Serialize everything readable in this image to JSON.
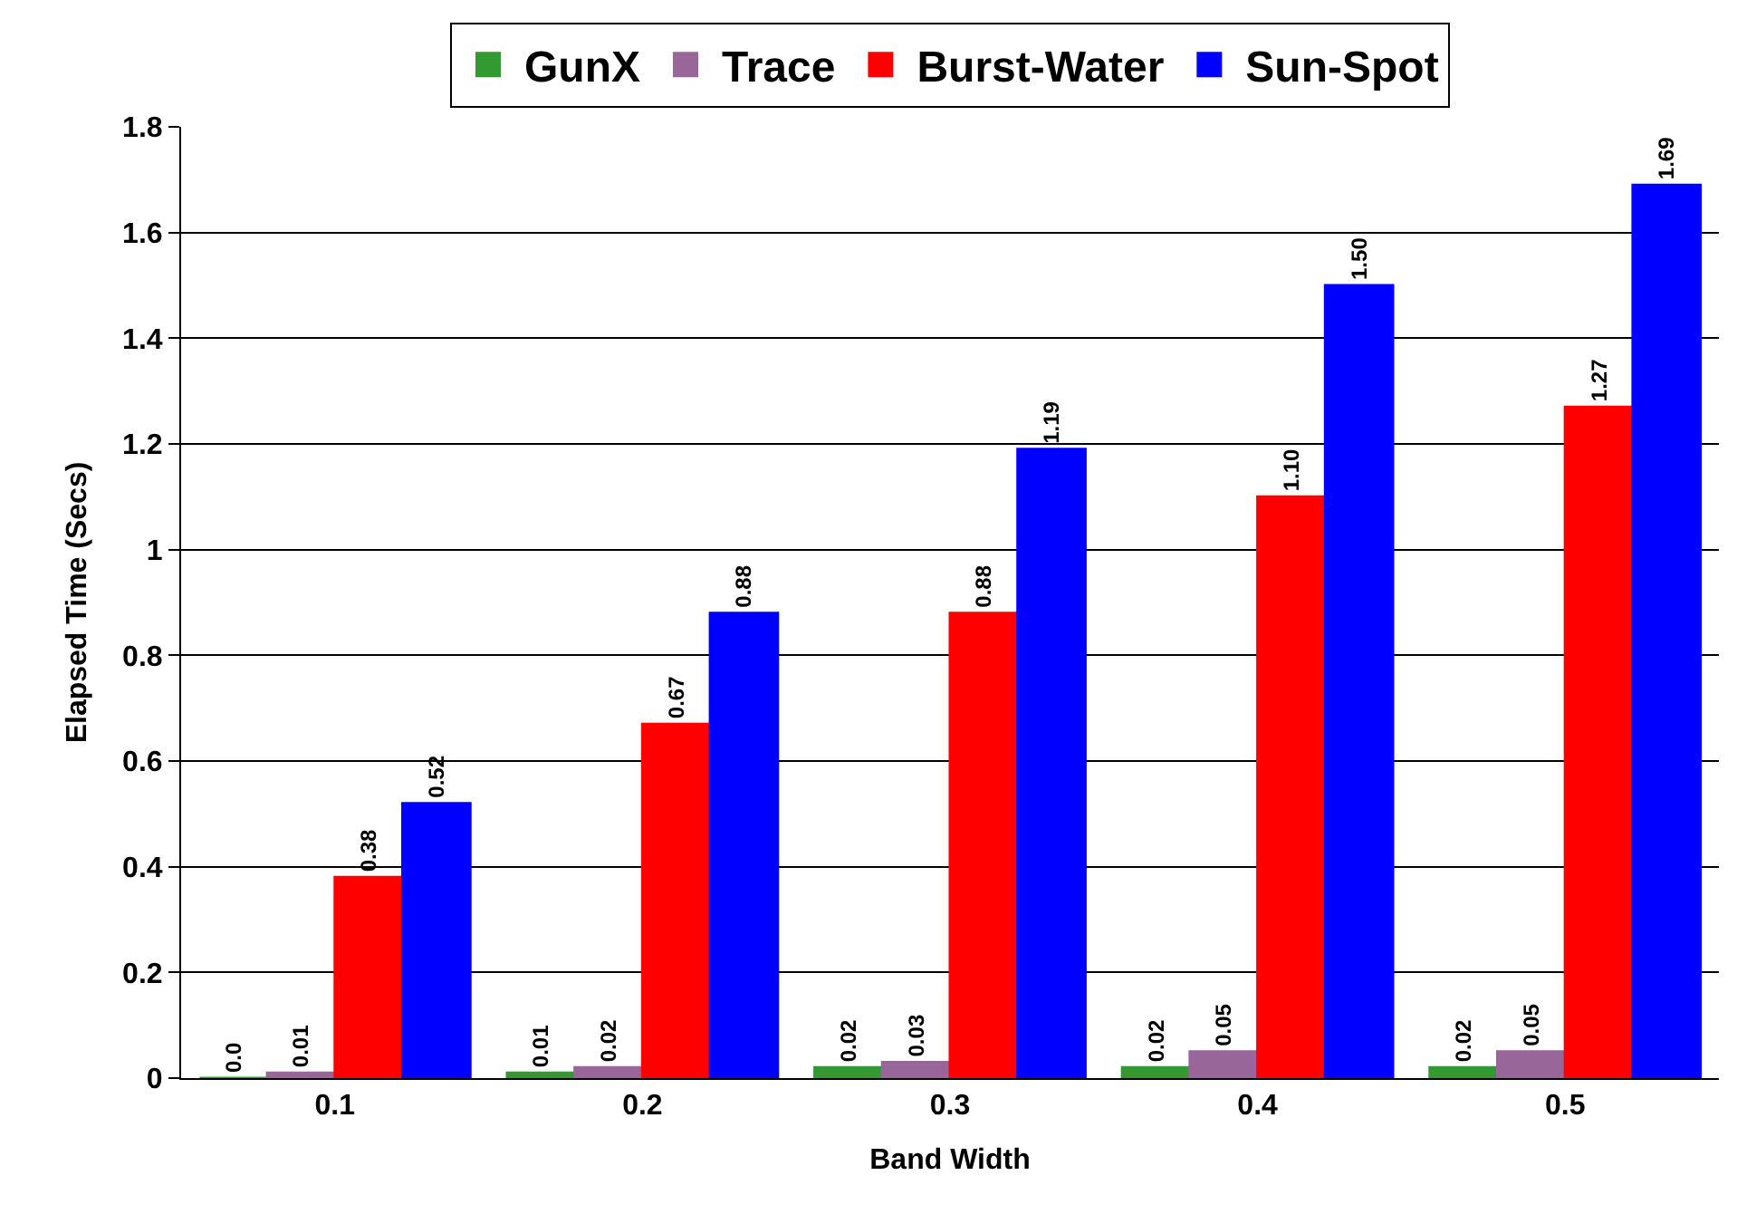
{
  "chart_data": {
    "type": "bar",
    "xlabel": "Band Width",
    "ylabel": "Elapsed Time (Secs)",
    "categories": [
      "0.1",
      "0.2",
      "0.3",
      "0.4",
      "0.5"
    ],
    "series": [
      {
        "name": "GunX",
        "color": "#339933",
        "values": [
          0.0,
          0.01,
          0.02,
          0.02,
          0.02
        ],
        "value_labels": [
          "0.0",
          "0.01",
          "0.02",
          "0.02",
          "0.02"
        ]
      },
      {
        "name": "Trace",
        "color": "#996699",
        "values": [
          0.01,
          0.02,
          0.03,
          0.05,
          0.05
        ],
        "value_labels": [
          "0.01",
          "0.02",
          "0.03",
          "0.05",
          "0.05"
        ]
      },
      {
        "name": "Burst-Water",
        "color": "#ff0000",
        "values": [
          0.38,
          0.67,
          0.88,
          1.1,
          1.27
        ],
        "value_labels": [
          "0.38",
          "0.67",
          "0.88",
          "1.10",
          "1.27"
        ]
      },
      {
        "name": "Sun-Spot",
        "color": "#0000ff",
        "values": [
          0.52,
          0.88,
          1.19,
          1.5,
          1.69
        ],
        "value_labels": [
          "0.52",
          "0.88",
          "1.19",
          "1.50",
          "1.69"
        ]
      }
    ],
    "ylim": [
      0,
      1.8
    ],
    "yticks": [
      0,
      0.2,
      0.4,
      0.6,
      0.8,
      1,
      1.2,
      1.4,
      1.6,
      1.8
    ],
    "grid": "y",
    "legend": "top"
  }
}
